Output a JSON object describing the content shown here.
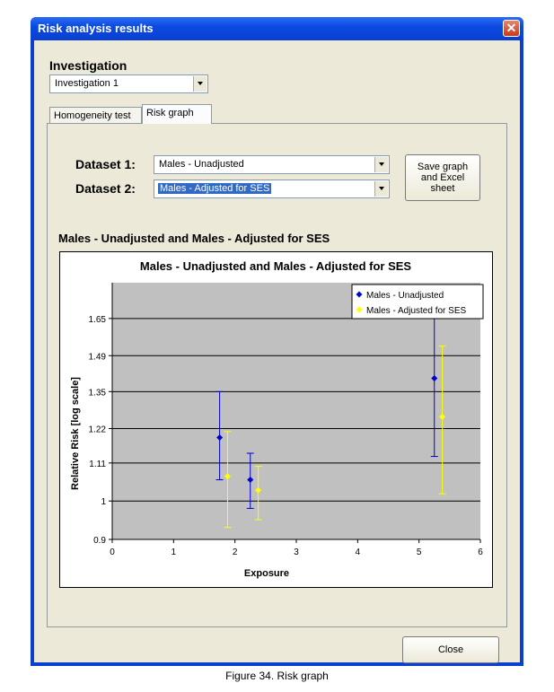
{
  "window": {
    "title": "Risk analysis results",
    "close_glyph": "✕"
  },
  "investigation": {
    "label": "Investigation",
    "selected": "Investigation 1"
  },
  "tabs": [
    {
      "label": "Homogeneity test",
      "active": false
    },
    {
      "label": "Risk graph",
      "active": true
    }
  ],
  "datasets": {
    "label1": "Dataset 1:",
    "value1": "Males - Unadjusted",
    "label2": "Dataset 2:",
    "value2": "Males - Adjusted for SES"
  },
  "save_button": "Save graph and Excel sheet",
  "chart_heading": "Males - Unadjusted and Males - Adjusted for SES",
  "close_button": "Close",
  "caption": "Figure 34. Risk graph",
  "chart_data": {
    "type": "scatter",
    "title": "Males - Unadjusted and Males - Adjusted for SES",
    "xlabel": "Exposure",
    "ylabel": "Relative Risk [log scale]",
    "xlim": [
      0,
      6
    ],
    "ylim": [
      0.9,
      1.82
    ],
    "x_scale": "linear",
    "y_scale": "log",
    "x_ticks": [
      "0",
      "1",
      "2",
      "3",
      "4",
      "5",
      "6"
    ],
    "y_ticks": [
      {
        "value": 0.9,
        "label": "0.9"
      },
      {
        "value": 1.0,
        "label": "1"
      },
      {
        "value": 1.11,
        "label": "1.11"
      },
      {
        "value": 1.22,
        "label": "1.22"
      },
      {
        "value": 1.35,
        "label": "1.35"
      },
      {
        "value": 1.49,
        "label": "1.49"
      },
      {
        "value": 1.65,
        "label": "1.65"
      }
    ],
    "grid": true,
    "legend_position": "top-right",
    "plot_background": "#c0c0c0",
    "series": [
      {
        "name": "Males - Unadjusted",
        "color": "#0000cc",
        "points": [
          {
            "x": 1.75,
            "y": 1.19,
            "low": 1.06,
            "high": 1.35
          },
          {
            "x": 2.25,
            "y": 1.06,
            "low": 0.98,
            "high": 1.14
          },
          {
            "x": 5.25,
            "y": 1.4,
            "low": 1.13,
            "high": 1.72
          }
        ]
      },
      {
        "name": "Males - Adjusted for SES",
        "color": "#ffff00",
        "points": [
          {
            "x": 1.88,
            "y": 1.07,
            "low": 0.93,
            "high": 1.21
          },
          {
            "x": 2.38,
            "y": 1.03,
            "low": 0.95,
            "high": 1.1
          },
          {
            "x": 5.38,
            "y": 1.26,
            "low": 1.02,
            "high": 1.53
          }
        ]
      }
    ]
  }
}
